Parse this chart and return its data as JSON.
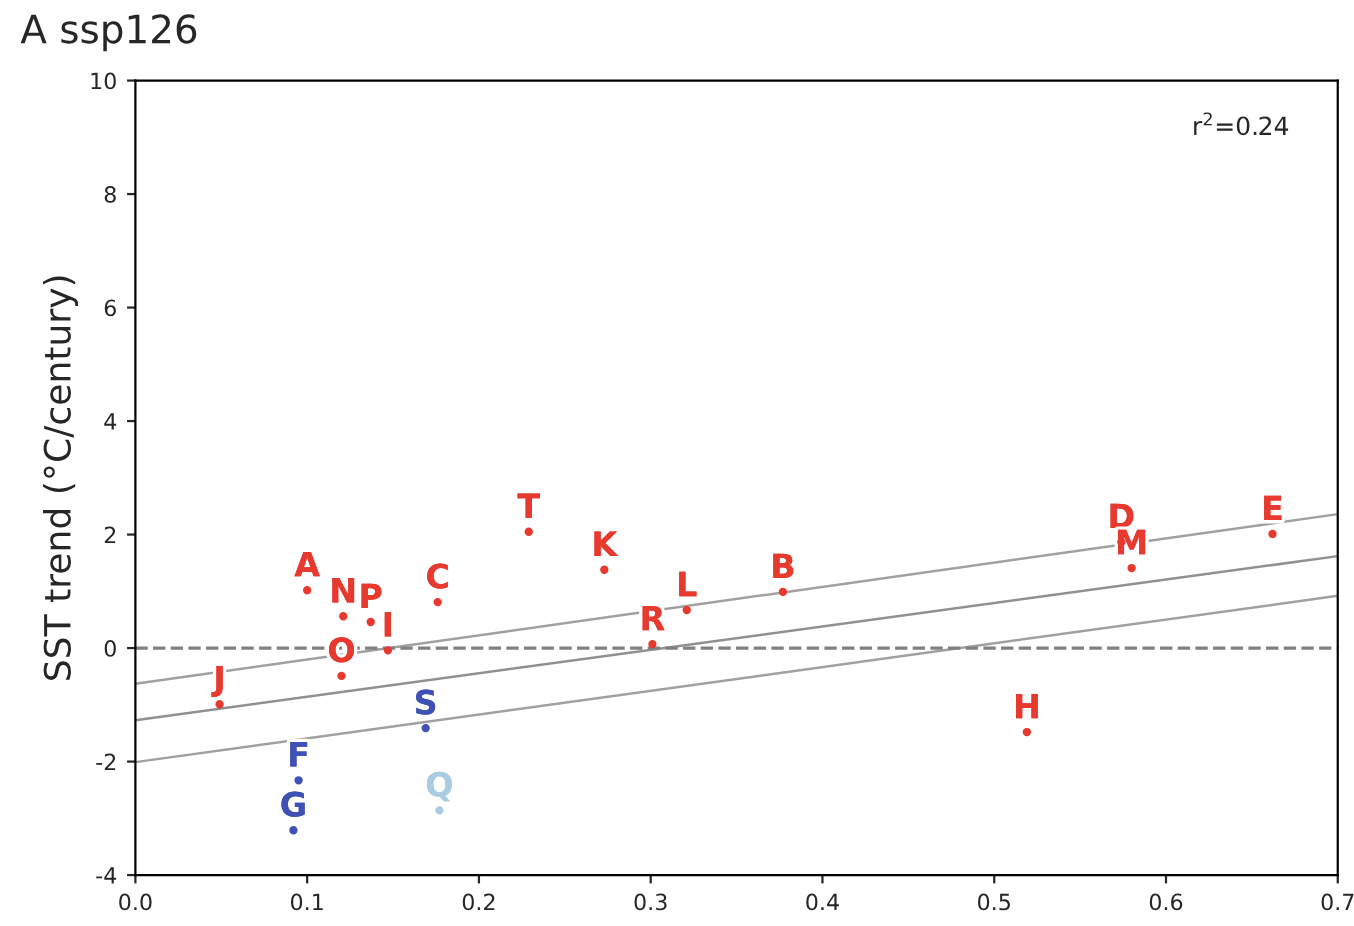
{
  "chart_data": {
    "type": "scatter",
    "title": "A ssp126",
    "ylabel": "SST trend (°C/century)",
    "annotations": [
      "r$^{2}$=0.24"
    ],
    "xlim": [
      0.0,
      0.7
    ],
    "xticks": [
      {
        "value": 0.0,
        "label": "0.0"
      },
      {
        "value": 0.1,
        "label": "0.1"
      },
      {
        "value": 0.2,
        "label": "0.2"
      },
      {
        "value": 0.3,
        "label": "0.3"
      },
      {
        "value": 0.4,
        "label": "0.4"
      },
      {
        "value": 0.5,
        "label": "0.5"
      },
      {
        "value": 0.6,
        "label": "0.6"
      },
      {
        "value": 0.7,
        "label": "0.7"
      }
    ],
    "ylim": [
      -4,
      10
    ],
    "yticks": [
      -4,
      -2,
      0,
      2,
      4,
      6,
      8,
      10
    ],
    "grid": false,
    "ref_lines": [
      {
        "axis": "y",
        "value": 0,
        "color": "#808080",
        "line_style": "dashed"
      }
    ],
    "series": [
      {
        "type": "scatter",
        "color": "#e8392f",
        "x": [
          0.1,
          0.377,
          0.176,
          0.574,
          0.662,
          0.519,
          0.147,
          0.049,
          0.273,
          0.321,
          0.58,
          0.121,
          0.12,
          0.137,
          0.301,
          0.229
        ],
        "values": [
          1.02,
          0.99,
          0.81,
          1.87,
          2.01,
          -1.48,
          -0.04,
          -0.99,
          1.38,
          0.67,
          1.41,
          0.56,
          -0.49,
          0.46,
          0.07,
          2.05
        ],
        "value_labels": [
          "A",
          "B",
          "C",
          "D",
          "E",
          "H",
          "I",
          "J",
          "K",
          "L",
          "M",
          "N",
          "O",
          "P",
          "R",
          "T"
        ]
      },
      {
        "type": "scatter",
        "color": "#3f51b5",
        "x": [
          0.095,
          0.092,
          0.169
        ],
        "values": [
          -2.33,
          -3.21,
          -1.41
        ],
        "value_labels": [
          "F",
          "G",
          "S"
        ]
      },
      {
        "type": "scatter",
        "color": "#a9cce3",
        "x": [
          0.177
        ],
        "values": [
          -2.86
        ],
        "value_labels": [
          "Q"
        ]
      },
      {
        "type": "line",
        "color": "#909090",
        "x": [
          0.0,
          0.7
        ],
        "values": [
          -1.27,
          1.62
        ]
      },
      {
        "type": "line",
        "color": "#a0a0a0",
        "x": [
          0.0,
          0.7
        ],
        "values": [
          -0.63,
          2.36
        ]
      },
      {
        "type": "line",
        "color": "#a0a0a0",
        "x": [
          0.0,
          0.7
        ],
        "values": [
          -2.01,
          0.92
        ]
      }
    ]
  }
}
